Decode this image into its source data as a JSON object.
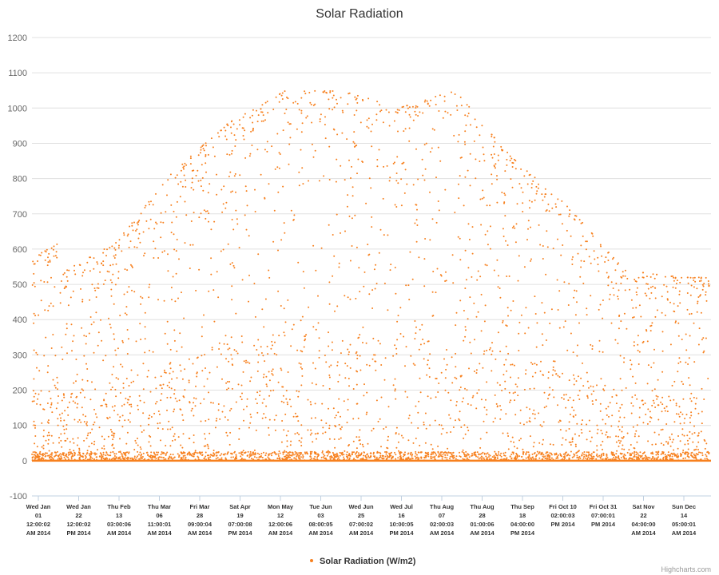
{
  "chart_data": {
    "type": "scatter",
    "title": "Solar Radiation",
    "xlabel": "",
    "ylabel": "",
    "ylim": [
      -100,
      1200
    ],
    "y_ticks": [
      -100,
      0,
      100,
      200,
      300,
      400,
      500,
      600,
      700,
      800,
      900,
      1000,
      1100,
      1200
    ],
    "x_tick_labels": [
      [
        "Wed Jan",
        "01",
        "12:00:02",
        "AM 2014"
      ],
      [
        "Wed Jan",
        "22",
        "12:00:02",
        "PM 2014"
      ],
      [
        "Thu Feb",
        "13",
        "03:00:06",
        "AM 2014"
      ],
      [
        "Thu Mar",
        "06",
        "11:00:01",
        "AM 2014"
      ],
      [
        "Fri Mar",
        "28",
        "09:00:04",
        "AM 2014"
      ],
      [
        "Sat Apr",
        "19",
        "07:00:08",
        "PM 2014"
      ],
      [
        "Mon May",
        "12",
        "12:00:06",
        "AM 2014"
      ],
      [
        "Tue Jun",
        "03",
        "08:00:05",
        "AM 2014"
      ],
      [
        "Wed Jun",
        "25",
        "07:00:02",
        "AM 2014"
      ],
      [
        "Wed Jul",
        "16",
        "10:00:05",
        "PM 2014"
      ],
      [
        "Thu Aug",
        "07",
        "02:00:03",
        "AM 2014"
      ],
      [
        "Thu Aug",
        "28",
        "01:00:06",
        "AM 2014"
      ],
      [
        "Thu Sep",
        "18",
        "04:00:00",
        "PM 2014"
      ],
      [
        "Fri Oct 10",
        "02:00:03",
        "PM 2014"
      ],
      [
        "Fri Oct 31",
        "07:00:01",
        "PM 2014"
      ],
      [
        "Sat Nov",
        "22",
        "04:00:00",
        "AM 2014"
      ],
      [
        "Sun Dec",
        "14",
        "05:00:01",
        "AM 2014"
      ]
    ],
    "series": [
      {
        "name": "Solar Radiation (W/m2)",
        "color": "#f7801e",
        "description_of_distribution": "hourly readings over 2014; daily peaks rise from ~500 in January to ~1050 in June and fall back to ~500 in December; many readings near 0 (night)",
        "peak_envelope": {
          "months": [
            "Jan",
            "Feb",
            "Mar",
            "Apr",
            "May",
            "Jun",
            "Jul",
            "Aug",
            "Sep",
            "Oct",
            "Nov",
            "Dec"
          ],
          "max_values": [
            530,
            620,
            820,
            960,
            1050,
            1050,
            1000,
            1050,
            860,
            720,
            540,
            520
          ]
        }
      }
    ],
    "grid": true,
    "legend_placement": "bottom-center"
  },
  "credit": "Highcharts.com"
}
